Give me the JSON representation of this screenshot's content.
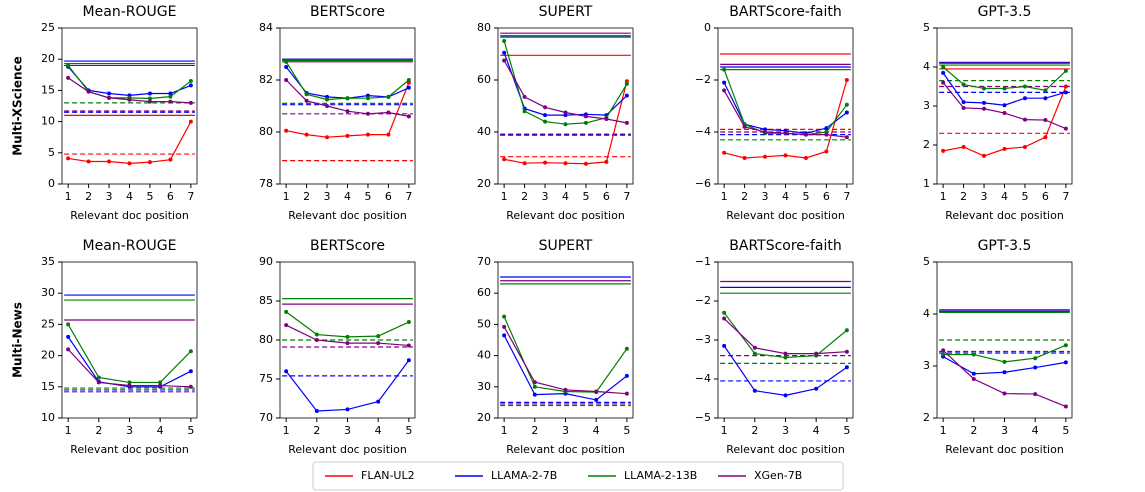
{
  "legend": [
    {
      "name": "FLAN-UL2",
      "color": "#ff0000"
    },
    {
      "name": "LLAMA-2-7B",
      "color": "#0000ff"
    },
    {
      "name": "LLAMA-2-13B",
      "color": "#008000"
    },
    {
      "name": "XGen-7B",
      "color": "#800080"
    }
  ],
  "chart_data": [
    {
      "type": "line",
      "title": "Mean-ROUGE",
      "row_label": "Multi-XScience",
      "xlabel": "Relevant doc position",
      "x": [
        1,
        2,
        3,
        4,
        5,
        6,
        7
      ],
      "xlim": [
        0.7,
        7.3
      ],
      "xticks": [
        1,
        2,
        3,
        4,
        5,
        6,
        7
      ],
      "ylim": [
        0,
        25
      ],
      "yticks": [
        0,
        5,
        10,
        15,
        20,
        25
      ],
      "series": [
        {
          "color": "#ff0000",
          "values": [
            4.1,
            3.6,
            3.6,
            3.3,
            3.5,
            3.9,
            10
          ]
        },
        {
          "color": "#0000ff",
          "values": [
            18.8,
            15,
            14.5,
            14.2,
            14.5,
            14.5,
            15.8
          ]
        },
        {
          "color": "#008000",
          "values": [
            19,
            14.8,
            13.8,
            13.8,
            13.7,
            14,
            16.5
          ]
        },
        {
          "color": "#800080",
          "values": [
            17,
            14.8,
            13.8,
            13.5,
            13.2,
            13.2,
            13
          ]
        }
      ],
      "reference_lines": [
        {
          "color": "#0000ff",
          "value": 19.7,
          "dashed": false
        },
        {
          "color": "#008000",
          "value": 19.3,
          "dashed": false
        },
        {
          "color": "#800080",
          "value": 19.0,
          "dashed": false
        },
        {
          "color": "#ff0000",
          "value": 11.0,
          "dashed": false
        },
        {
          "color": "#008000",
          "value": 13.0,
          "dashed": true
        },
        {
          "color": "#800080",
          "value": 11.7,
          "dashed": true
        },
        {
          "color": "#0000ff",
          "value": 11.5,
          "dashed": true
        },
        {
          "color": "#ff0000",
          "value": 4.8,
          "dashed": true
        }
      ]
    },
    {
      "type": "line",
      "title": "BERTScore",
      "xlabel": "Relevant doc position",
      "x": [
        1,
        2,
        3,
        4,
        5,
        6,
        7
      ],
      "xlim": [
        0.7,
        7.3
      ],
      "xticks": [
        1,
        2,
        3,
        4,
        5,
        6,
        7
      ],
      "ylim": [
        78,
        84
      ],
      "yticks": [
        78,
        80,
        82,
        84
      ],
      "series": [
        {
          "color": "#ff0000",
          "values": [
            80.05,
            79.9,
            79.8,
            79.85,
            79.9,
            79.9,
            81.9
          ]
        },
        {
          "color": "#0000ff",
          "values": [
            82.5,
            81.5,
            81.35,
            81.3,
            81.4,
            81.35,
            81.7
          ]
        },
        {
          "color": "#008000",
          "values": [
            82.7,
            81.45,
            81.25,
            81.3,
            81.3,
            81.35,
            82
          ]
        },
        {
          "color": "#800080",
          "values": [
            82,
            81.2,
            81,
            80.8,
            80.7,
            80.75,
            80.6
          ]
        }
      ],
      "reference_lines": [
        {
          "color": "#ff0000",
          "value": 82.8,
          "dashed": false
        },
        {
          "color": "#0000ff",
          "value": 82.8,
          "dashed": false
        },
        {
          "color": "#008000",
          "value": 82.75,
          "dashed": false
        },
        {
          "color": "#800080",
          "value": 82.7,
          "dashed": false
        },
        {
          "color": "#008000",
          "value": 81.1,
          "dashed": true
        },
        {
          "color": "#0000ff",
          "value": 81.05,
          "dashed": true
        },
        {
          "color": "#800080",
          "value": 80.7,
          "dashed": true
        },
        {
          "color": "#ff0000",
          "value": 78.9,
          "dashed": true
        }
      ]
    },
    {
      "type": "line",
      "title": "SUPERT",
      "xlabel": "Relevant doc position",
      "x": [
        1,
        2,
        3,
        4,
        5,
        6,
        7
      ],
      "xlim": [
        0.7,
        7.3
      ],
      "xticks": [
        1,
        2,
        3,
        4,
        5,
        6,
        7
      ],
      "ylim": [
        20,
        80
      ],
      "yticks": [
        20,
        40,
        60,
        80
      ],
      "series": [
        {
          "color": "#ff0000",
          "values": [
            29.5,
            28,
            28.2,
            28,
            27.8,
            28.5,
            59.5
          ]
        },
        {
          "color": "#0000ff",
          "values": [
            70.5,
            49,
            46.5,
            46.5,
            46.8,
            46.5,
            54
          ]
        },
        {
          "color": "#008000",
          "values": [
            75,
            48,
            44,
            43,
            43.5,
            45.5,
            58.5
          ]
        },
        {
          "color": "#800080",
          "values": [
            67.5,
            53.5,
            49.5,
            47.5,
            46,
            45,
            43.5
          ]
        }
      ],
      "reference_lines": [
        {
          "color": "#800080",
          "value": 78,
          "dashed": false
        },
        {
          "color": "#0000ff",
          "value": 77,
          "dashed": false
        },
        {
          "color": "#008000",
          "value": 76.5,
          "dashed": false
        },
        {
          "color": "#ff0000",
          "value": 69.5,
          "dashed": false
        },
        {
          "color": "#008000",
          "value": 39.2,
          "dashed": true
        },
        {
          "color": "#800080",
          "value": 39,
          "dashed": true
        },
        {
          "color": "#0000ff",
          "value": 38.8,
          "dashed": true
        },
        {
          "color": "#ff0000",
          "value": 30.5,
          "dashed": true
        }
      ]
    },
    {
      "type": "line",
      "title": "BARTScore-faith",
      "xlabel": "Relevant doc position",
      "x": [
        1,
        2,
        3,
        4,
        5,
        6,
        7
      ],
      "xlim": [
        0.7,
        7.3
      ],
      "xticks": [
        1,
        2,
        3,
        4,
        5,
        6,
        7
      ],
      "ylim": [
        -6,
        0
      ],
      "yticks": [
        {
          "value": -6,
          "label": "−6"
        },
        {
          "value": -4,
          "label": "−4"
        },
        {
          "value": -2,
          "label": "−2"
        },
        0
      ],
      "series": [
        {
          "color": "#ff0000",
          "values": [
            -4.8,
            -5,
            -4.95,
            -4.9,
            -5,
            -4.75,
            -2
          ]
        },
        {
          "color": "#0000ff",
          "values": [
            -2.1,
            -3.7,
            -3.9,
            -3.95,
            -4.05,
            -3.85,
            -3.25
          ]
        },
        {
          "color": "#008000",
          "values": [
            -1.6,
            -3.7,
            -4.05,
            -4.05,
            -4.1,
            -4.0,
            -2.95
          ]
        },
        {
          "color": "#800080",
          "values": [
            -2.4,
            -3.8,
            -4.0,
            -4.05,
            -4.1,
            -4.1,
            -4.2
          ]
        }
      ],
      "reference_lines": [
        {
          "color": "#ff0000",
          "value": -1.0,
          "dashed": false
        },
        {
          "color": "#800080",
          "value": -1.4,
          "dashed": false
        },
        {
          "color": "#0000ff",
          "value": -1.5,
          "dashed": false
        },
        {
          "color": "#008000",
          "value": -1.6,
          "dashed": false
        },
        {
          "color": "#ff0000",
          "value": -3.9,
          "dashed": true
        },
        {
          "color": "#800080",
          "value": -4.0,
          "dashed": true
        },
        {
          "color": "#0000ff",
          "value": -4.1,
          "dashed": true
        },
        {
          "color": "#008000",
          "value": -4.3,
          "dashed": true
        }
      ]
    },
    {
      "type": "line",
      "title": "GPT-3.5",
      "xlabel": "Relevant doc position",
      "x": [
        1,
        2,
        3,
        4,
        5,
        6,
        7
      ],
      "xlim": [
        0.7,
        7.3
      ],
      "xticks": [
        1,
        2,
        3,
        4,
        5,
        6,
        7
      ],
      "ylim": [
        1,
        5
      ],
      "yticks": [
        1,
        2,
        3,
        4,
        5
      ],
      "series": [
        {
          "color": "#ff0000",
          "values": [
            1.85,
            1.95,
            1.72,
            1.9,
            1.95,
            2.2,
            3.5
          ]
        },
        {
          "color": "#0000ff",
          "values": [
            3.85,
            3.1,
            3.08,
            3.02,
            3.2,
            3.2,
            3.35
          ]
        },
        {
          "color": "#008000",
          "values": [
            4.0,
            3.55,
            3.45,
            3.45,
            3.5,
            3.4,
            3.9
          ]
        },
        {
          "color": "#800080",
          "values": [
            3.6,
            2.95,
            2.93,
            2.82,
            2.65,
            2.64,
            2.42
          ]
        }
      ],
      "reference_lines": [
        {
          "color": "#800080",
          "value": 4.12,
          "dashed": false
        },
        {
          "color": "#0000ff",
          "value": 4.1,
          "dashed": false
        },
        {
          "color": "#008000",
          "value": 4.05,
          "dashed": false
        },
        {
          "color": "#ff0000",
          "value": 3.95,
          "dashed": false
        },
        {
          "color": "#008000",
          "value": 3.65,
          "dashed": true
        },
        {
          "color": "#800080",
          "value": 3.5,
          "dashed": true
        },
        {
          "color": "#0000ff",
          "value": 3.35,
          "dashed": true
        },
        {
          "color": "#ff0000",
          "value": 2.3,
          "dashed": true
        }
      ]
    },
    {
      "type": "line",
      "title": "Mean-ROUGE",
      "row_label": "Multi-News",
      "xlabel": "Relevant doc position",
      "x": [
        1,
        2,
        3,
        4,
        5
      ],
      "xlim": [
        0.8,
        5.2
      ],
      "xticks": [
        1,
        2,
        3,
        4,
        5
      ],
      "ylim": [
        10,
        35
      ],
      "yticks": [
        10,
        15,
        20,
        25,
        30,
        35
      ],
      "series": [
        {
          "color": "#0000ff",
          "values": [
            23,
            15.8,
            15,
            15,
            17.5
          ]
        },
        {
          "color": "#008000",
          "values": [
            25,
            16.5,
            15.7,
            15.7,
            20.7
          ]
        },
        {
          "color": "#800080",
          "values": [
            21,
            15.7,
            15.2,
            15.2,
            15
          ]
        }
      ],
      "reference_lines": [
        {
          "color": "#0000ff",
          "value": 29.7,
          "dashed": false
        },
        {
          "color": "#008000",
          "value": 28.9,
          "dashed": false
        },
        {
          "color": "#800080",
          "value": 25.7,
          "dashed": false
        },
        {
          "color": "#008000",
          "value": 14.8,
          "dashed": true
        },
        {
          "color": "#0000ff",
          "value": 14.5,
          "dashed": true
        },
        {
          "color": "#800080",
          "value": 14.2,
          "dashed": true
        }
      ]
    },
    {
      "type": "line",
      "title": "BERTScore",
      "xlabel": "Relevant doc position",
      "x": [
        1,
        2,
        3,
        4,
        5
      ],
      "xlim": [
        0.8,
        5.2
      ],
      "xticks": [
        1,
        2,
        3,
        4,
        5
      ],
      "ylim": [
        70,
        90
      ],
      "yticks": [
        70,
        75,
        80,
        85,
        90
      ],
      "series": [
        {
          "color": "#0000ff",
          "values": [
            76,
            70.9,
            71.1,
            72.1,
            77.4
          ]
        },
        {
          "color": "#008000",
          "values": [
            83.6,
            80.7,
            80.4,
            80.5,
            82.3
          ]
        },
        {
          "color": "#800080",
          "values": [
            81.9,
            80.0,
            79.6,
            79.6,
            79.3
          ]
        }
      ],
      "reference_lines": [
        {
          "color": "#008000",
          "value": 85.3,
          "dashed": false
        },
        {
          "color": "#800080",
          "value": 84.6,
          "dashed": false
        },
        {
          "color": "#008000",
          "value": 80.0,
          "dashed": true
        },
        {
          "color": "#800080",
          "value": 79.1,
          "dashed": true
        },
        {
          "color": "#0000ff",
          "value": 75.4,
          "dashed": true
        }
      ]
    },
    {
      "type": "line",
      "title": "SUPERT",
      "xlabel": "Relevant doc position",
      "x": [
        1,
        2,
        3,
        4,
        5
      ],
      "xlim": [
        0.8,
        5.2
      ],
      "xticks": [
        1,
        2,
        3,
        4,
        5
      ],
      "ylim": [
        20,
        70
      ],
      "yticks": [
        20,
        30,
        40,
        50,
        60,
        70
      ],
      "series": [
        {
          "color": "#0000ff",
          "values": [
            46.5,
            27.5,
            27.8,
            25.8,
            33.5
          ]
        },
        {
          "color": "#008000",
          "values": [
            52.5,
            30,
            28.5,
            28.3,
            42.2
          ]
        },
        {
          "color": "#800080",
          "values": [
            49.2,
            31.5,
            29,
            28.5,
            27.8
          ]
        }
      ],
      "reference_lines": [
        {
          "color": "#0000ff",
          "value": 65.2,
          "dashed": false
        },
        {
          "color": "#800080",
          "value": 64,
          "dashed": false
        },
        {
          "color": "#008000",
          "value": 63,
          "dashed": false
        },
        {
          "color": "#0000ff",
          "value": 25,
          "dashed": true
        },
        {
          "color": "#800080",
          "value": 24.5,
          "dashed": true
        },
        {
          "color": "#008000",
          "value": 24,
          "dashed": true
        }
      ]
    },
    {
      "type": "line",
      "title": "BARTScore-faith",
      "xlabel": "Relevant doc position",
      "x": [
        1,
        2,
        3,
        4,
        5
      ],
      "xlim": [
        0.8,
        5.2
      ],
      "xticks": [
        1,
        2,
        3,
        4,
        5
      ],
      "ylim": [
        -5,
        -1
      ],
      "yticks": [
        {
          "value": -5,
          "label": "−5"
        },
        {
          "value": -4,
          "label": "−4"
        },
        {
          "value": -3,
          "label": "−3"
        },
        {
          "value": -2,
          "label": "−2"
        },
        {
          "value": -1,
          "label": "−1"
        }
      ],
      "series": [
        {
          "color": "#0000ff",
          "values": [
            -3.15,
            -4.3,
            -4.42,
            -4.25,
            -3.7
          ]
        },
        {
          "color": "#008000",
          "values": [
            -2.3,
            -3.35,
            -3.45,
            -3.4,
            -2.75
          ]
        },
        {
          "color": "#800080",
          "values": [
            -2.45,
            -3.2,
            -3.35,
            -3.35,
            -3.3
          ]
        }
      ],
      "reference_lines": [
        {
          "color": "#800080",
          "value": -1.5,
          "dashed": false
        },
        {
          "color": "#0000ff",
          "value": -1.65,
          "dashed": false
        },
        {
          "color": "#008000",
          "value": -1.8,
          "dashed": false
        },
        {
          "color": "#800080",
          "value": -3.4,
          "dashed": true
        },
        {
          "color": "#008000",
          "value": -3.6,
          "dashed": true
        },
        {
          "color": "#0000ff",
          "value": -4.05,
          "dashed": true
        }
      ]
    },
    {
      "type": "line",
      "title": "GPT-3.5",
      "xlabel": "Relevant doc position",
      "x": [
        1,
        2,
        3,
        4,
        5
      ],
      "xlim": [
        0.8,
        5.2
      ],
      "xticks": [
        1,
        2,
        3,
        4,
        5
      ],
      "ylim": [
        2,
        5
      ],
      "yticks": [
        2,
        3,
        4,
        5
      ],
      "series": [
        {
          "color": "#0000ff",
          "values": [
            3.18,
            2.85,
            2.88,
            2.97,
            3.07
          ]
        },
        {
          "color": "#008000",
          "values": [
            3.22,
            3.22,
            3.08,
            3.15,
            3.4
          ]
        },
        {
          "color": "#800080",
          "values": [
            3.3,
            2.75,
            2.47,
            2.46,
            2.22
          ]
        }
      ],
      "reference_lines": [
        {
          "color": "#0000ff",
          "value": 4.08,
          "dashed": false
        },
        {
          "color": "#800080",
          "value": 4.05,
          "dashed": false
        },
        {
          "color": "#008000",
          "value": 4.03,
          "dashed": false
        },
        {
          "color": "#008000",
          "value": 3.5,
          "dashed": true
        },
        {
          "color": "#800080",
          "value": 3.28,
          "dashed": true
        },
        {
          "color": "#0000ff",
          "value": 3.25,
          "dashed": true
        }
      ]
    }
  ]
}
